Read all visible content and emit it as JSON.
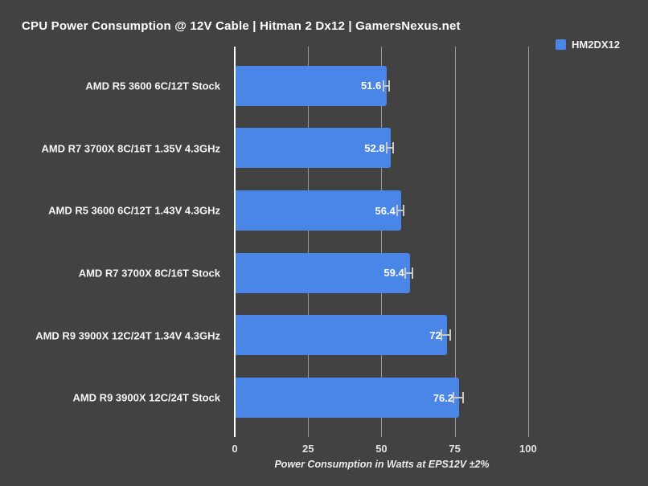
{
  "title": "CPU Power Consumption @ 12V Cable | Hitman 2 Dx12 | GamersNexus.net",
  "legend": {
    "label": "HM2DX12",
    "color": "#4a86e8"
  },
  "colors": {
    "background": "#424242",
    "bar": "#4a86e8",
    "gridline": "#9a9a9a",
    "axis_line": "#ffffff",
    "error_bar": "#c8c8c8",
    "text": "#ffffff"
  },
  "chart_data": {
    "type": "bar",
    "orientation": "horizontal",
    "title": "CPU Power Consumption @ 12V Cable | Hitman 2 Dx12 | GamersNexus.net",
    "categories": [
      "AMD R5 3600 6C/12T Stock",
      "AMD R7 3700X 8C/16T 1.35V 4.3GHz",
      "AMD R5 3600 6C/12T 1.43V 4.3GHz",
      "AMD R7 3700X 8C/16T Stock",
      "AMD R9 3900X 12C/24T 1.34V 4.3GHz",
      "AMD R9 3900X 12C/24T Stock"
    ],
    "series": [
      {
        "name": "HM2DX12",
        "values": [
          51.6,
          52.8,
          56.4,
          59.4,
          72,
          76.2
        ],
        "value_labels": [
          "51.6",
          "52.8",
          "56.4",
          "59.4",
          "72",
          "76.2"
        ]
      }
    ],
    "error_bars_percent": 2,
    "xlabel": "Power Consumption in Watts at EPS12V ±2%",
    "ylabel": "",
    "xticks": [
      0,
      25,
      50,
      75,
      100
    ],
    "xtick_labels": [
      "0",
      "25",
      "50",
      "75",
      "100"
    ],
    "xlim": [
      0,
      131
    ],
    "grid": true,
    "legend_position": "top-right"
  }
}
